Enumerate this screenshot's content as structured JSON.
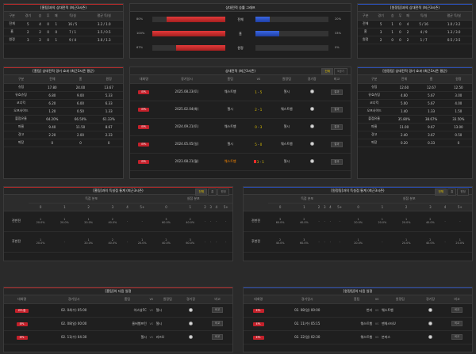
{
  "home_record": {
    "title": "[홈팀]과의 상대전적 (최근3시즌)",
    "headers": [
      "구분",
      "경기",
      "승",
      "무",
      "패",
      "득/실",
      "평균 득/실"
    ],
    "rows": [
      [
        "전체",
        "5",
        "4",
        "0",
        "1",
        "16 / 5",
        "3.2 / 1.0"
      ],
      [
        "홈",
        "2",
        "2",
        "0",
        "0",
        "7 / 1",
        "3.5 / 0.5"
      ],
      [
        "원정",
        "3",
        "2",
        "0",
        "1",
        "9 / 4",
        "3.0 / 1.3"
      ]
    ]
  },
  "compare": {
    "title": "상대전적 승률 그래프",
    "rows": [
      {
        "left_pct": "80%",
        "label": "전체",
        "right_pct": "20%",
        "left": 80,
        "right": 20
      },
      {
        "left_pct": "100%",
        "label": "홈",
        "right_pct": "33%",
        "left": 100,
        "right": 33
      },
      {
        "left_pct": "67%",
        "label": "원정",
        "right_pct": "0%",
        "left": 67,
        "right": 0
      }
    ]
  },
  "away_record": {
    "title": "[원정팀]과의 상대전적 (최근3시즌)",
    "headers": [
      "구분",
      "경기",
      "승",
      "무",
      "패",
      "득/실",
      "평균 득/실"
    ],
    "rows": [
      [
        "전체",
        "5",
        "1",
        "0",
        "4",
        "5 / 16",
        "1.0 / 3.2"
      ],
      [
        "홈",
        "3",
        "1",
        "0",
        "2",
        "4 / 9",
        "1.3 / 3.0"
      ],
      [
        "원정",
        "2",
        "0",
        "0",
        "2",
        "1 / 7",
        "0.5 / 3.5"
      ]
    ]
  },
  "home_effect": {
    "title": "[홈팀] 상대전적 경기 효과 (최근3시즌 평균)",
    "headers": [
      "구분",
      "전체",
      "홈",
      "원정"
    ],
    "rows": [
      [
        "슈팅",
        "17.80",
        "24.00",
        "13.67"
      ],
      [
        "유효슈팅",
        "6.80",
        "9.00",
        "5.33"
      ],
      [
        "코너킥",
        "6.20",
        "6.00",
        "6.33"
      ],
      [
        "오프사이드",
        "1.20",
        "0.50",
        "1.33"
      ],
      [
        "볼점유율",
        "64.20%",
        "66.50%",
        "61.33%"
      ],
      [
        "파울",
        "9.40",
        "11.50",
        "8.67"
      ],
      [
        "경고",
        "2.20",
        "2.00",
        "2.33"
      ],
      [
        "퇴장",
        "0",
        "0",
        "0"
      ]
    ]
  },
  "recent": {
    "title": "상대전적 (최근3시즌)",
    "tab_all": "전체",
    "tab_five": "5경기",
    "headers": [
      "대회명",
      "경기일시",
      "홈팀",
      "vs",
      "원정팀",
      "경기장",
      "비고"
    ],
    "rows": [
      {
        "league": "EPL",
        "date": "2025.08.23(토)",
        "home": "웨스트햄",
        "hs": "1",
        "as": "5",
        "away": "첼시",
        "note": "결과"
      },
      {
        "league": "EPL",
        "date": "2025.02.04(화)",
        "home": "첼시",
        "hs": "2",
        "as": "1",
        "away": "웨스트햄",
        "note": "결과"
      },
      {
        "league": "EPL",
        "date": "2024.09.21(토)",
        "home": "웨스트햄",
        "hs": "0",
        "as": "3",
        "away": "첼시",
        "note": "결과"
      },
      {
        "league": "EPL",
        "date": "2024.05.05(일)",
        "home": "첼시",
        "hs": "5",
        "as": "0",
        "away": "웨스트햄",
        "note": "결과"
      },
      {
        "league": "EPL",
        "date": "2023.08.21(월)",
        "home": "웨스트햄",
        "hs": "3",
        "as": "1",
        "away": "첼시",
        "note": "결과"
      }
    ]
  },
  "away_effect": {
    "title": "[원정팀] 상대전적 경기 효과 (최근3시즌 평균)",
    "headers": [
      "구분",
      "전체",
      "홈",
      "원정"
    ],
    "rows": [
      [
        "슈팅",
        "12.60",
        "12.67",
        "12.50"
      ],
      [
        "유효슈팅",
        "4.60",
        "5.67",
        "3.00"
      ],
      [
        "코너킥",
        "5.00",
        "5.67",
        "4.00"
      ],
      [
        "오프사이드",
        "1.40",
        "1.33",
        "1.50"
      ],
      [
        "볼점유율",
        "35.80%",
        "38.67%",
        "33.50%"
      ],
      [
        "파울",
        "11.00",
        "9.67",
        "13.00"
      ],
      [
        "경고",
        "2.40",
        "3.67",
        "0.50"
      ],
      [
        "퇴장",
        "0.20",
        "0.33",
        "0"
      ]
    ]
  },
  "home_goals": {
    "title": "[홈팀]과의 득실점 통계 (최근3시즌)",
    "tabs": [
      "전체",
      "홈",
      "원정"
    ],
    "group_headers": [
      "득점 분포",
      "실점 분포"
    ],
    "sub_headers": [
      "0",
      "1",
      "2",
      "3",
      "4",
      "5+",
      "0",
      "1",
      "2",
      "3",
      "4",
      "5+"
    ],
    "rows": [
      {
        "label": "전반전",
        "cells": [
          "1\n20.0%",
          "1\n20.0%",
          "1\n20.0%",
          "2\n40.0%",
          "-",
          "-",
          "3\n60.0%",
          "2\n40.0%",
          "-",
          "-",
          "-",
          "-"
        ]
      },
      {
        "label": "후반전",
        "cells": [
          "1\n20.0%",
          "-",
          "1\n20.0%",
          "2\n40.0%",
          "-",
          "1\n20.0%",
          "2\n40.0%",
          "3\n60.0%",
          "-",
          "-",
          "-",
          "-"
        ]
      }
    ]
  },
  "away_goals": {
    "title": "[원정팀]과의 득실점 통계 (최근3시즌)",
    "tabs": [
      "전체",
      "홈",
      "원정"
    ],
    "group_headers": [
      "득점 분포",
      "실점 분포"
    ],
    "sub_headers": [
      "0",
      "1",
      "2",
      "3",
      "4",
      "5+",
      "0",
      "1",
      "2",
      "3",
      "4",
      "5+"
    ],
    "rows": [
      {
        "label": "전반전",
        "cells": [
          "3\n60.0%",
          "2\n40.0%",
          "-",
          "-",
          "-",
          "-",
          "1\n20.0%",
          "1\n20.0%",
          "1\n20.0%",
          "2\n40.0%",
          "-",
          "-"
        ]
      },
      {
        "label": "후반전",
        "cells": [
          "2\n40.0%",
          "3\n60.0%",
          "-",
          "-",
          "-",
          "-",
          "1\n20.0%",
          "-",
          "1\n20.0%",
          "2\n40.0%",
          "-",
          "1\n20.0%"
        ]
      }
    ]
  },
  "home_next": {
    "title": "[홈팀]의 다음 일정",
    "headers": [
      "대회명",
      "경기일시",
      "홈팀",
      "vs",
      "원정팀",
      "경기장",
      "비고"
    ],
    "rows": [
      {
        "league": "EFL컵",
        "date": "02. 04(수) 05:00",
        "home": "아스날FC",
        "away": "첼시",
        "note": "비교"
      },
      {
        "league": "EPL",
        "date": "02. 08(일) 00:00",
        "home": "울버햄프턴",
        "away": "첼시",
        "note": "비교"
      },
      {
        "league": "EPL",
        "date": "02. 11(수) 04:30",
        "home": "첼시",
        "away": "리즈U",
        "note": "비교"
      }
    ]
  },
  "away_next": {
    "title": "[원정팀]의 다음 일정",
    "headers": [
      "대회명",
      "경기일시",
      "홈팀",
      "vs",
      "원정팀",
      "경기장",
      "비고"
    ],
    "rows": [
      {
        "league": "EPL",
        "date": "02. 08(일) 00:00",
        "home": "번리",
        "away": "웨스트햄",
        "note": "비교"
      },
      {
        "league": "EPL",
        "date": "02. 11(수) 05:15",
        "home": "웨스트햄",
        "away": "맨체스터U",
        "note": "비교"
      },
      {
        "league": "EPL",
        "date": "02. 22(일) 02:30",
        "home": "웨스트햄",
        "away": "본머스",
        "note": "비교"
      }
    ]
  }
}
